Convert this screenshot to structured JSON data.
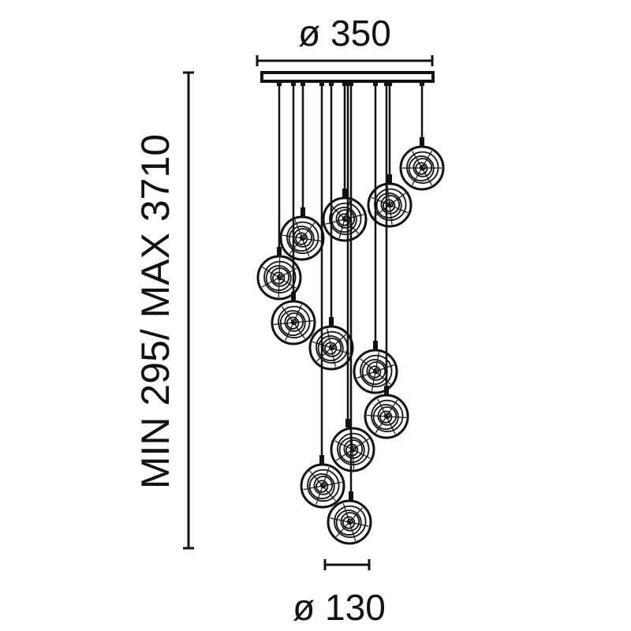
{
  "dimensions": {
    "width_label": "ø 350",
    "height_label": "MIN 295/ MAX 3710",
    "globe_label": "ø 130"
  },
  "colors": {
    "line": "#111111",
    "background": "#ffffff"
  },
  "product": {
    "globe_count": 12
  }
}
